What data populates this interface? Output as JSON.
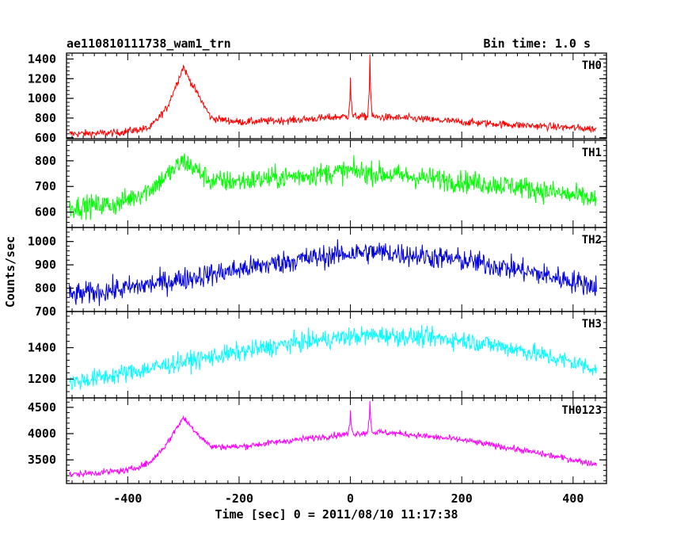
{
  "header": {
    "title": "ae110810111738_wam1_trn",
    "bin_time": "Bin time: 1.0 s"
  },
  "chart_data": {
    "type": "line",
    "xlabel": "Time [sec] 0 = 2011/08/10 11:17:38",
    "ylabel": "Counts/sec",
    "xlim": [
      -510,
      460
    ],
    "x_ticks": [
      -400,
      -200,
      0,
      200,
      400
    ],
    "panels": [
      {
        "label": "TH0",
        "color": "#ff0000",
        "ylim": [
          590,
          1460
        ],
        "y_ticks": [
          600,
          800,
          1000,
          1200,
          1400
        ],
        "profile": {
          "x": [
            -500,
            -420,
            -360,
            -330,
            -310,
            -300,
            -290,
            -270,
            -250,
            -200,
            -100,
            0,
            100,
            200,
            300,
            440
          ],
          "y": [
            640,
            650,
            700,
            900,
            1180,
            1320,
            1200,
            1000,
            800,
            760,
            780,
            820,
            800,
            760,
            730,
            690
          ]
        },
        "noise": 35,
        "spikes": [
          {
            "x": 0,
            "y": 1210
          },
          {
            "x": 35,
            "y": 1460
          }
        ]
      },
      {
        "label": "TH1",
        "color": "#00ff00",
        "ylim": [
          540,
          880
        ],
        "y_ticks": [
          600,
          700,
          800
        ],
        "profile": {
          "x": [
            -500,
            -420,
            -360,
            -320,
            -300,
            -280,
            -250,
            -200,
            -100,
            0,
            100,
            200,
            300,
            440
          ],
          "y": [
            620,
            630,
            690,
            760,
            800,
            770,
            720,
            720,
            740,
            760,
            740,
            720,
            700,
            650
          ]
        },
        "noise": 40,
        "spikes": []
      },
      {
        "label": "TH2",
        "color": "#0000e0",
        "ylim": [
          700,
          1060
        ],
        "y_ticks": [
          700,
          800,
          900,
          1000
        ],
        "profile": {
          "x": [
            -500,
            -400,
            -300,
            -200,
            -100,
            0,
            50,
            100,
            200,
            300,
            440
          ],
          "y": [
            770,
            800,
            840,
            880,
            920,
            950,
            955,
            945,
            920,
            880,
            810
          ]
        },
        "noise": 45,
        "spikes": []
      },
      {
        "label": "TH3",
        "color": "#00ffff",
        "ylim": [
          1080,
          1630
        ],
        "y_ticks": [
          1200,
          1400
        ],
        "profile": {
          "x": [
            -500,
            -400,
            -300,
            -200,
            -100,
            0,
            50,
            100,
            200,
            300,
            440
          ],
          "y": [
            1180,
            1240,
            1310,
            1370,
            1430,
            1470,
            1480,
            1470,
            1450,
            1390,
            1270
          ]
        },
        "noise": 55,
        "spikes": []
      },
      {
        "label": "TH0123",
        "color": "#ff00ff",
        "ylim": [
          3050,
          4680
        ],
        "y_ticks": [
          3500,
          4000,
          4500
        ],
        "profile": {
          "x": [
            -500,
            -400,
            -360,
            -330,
            -310,
            -300,
            -290,
            -270,
            -250,
            -200,
            -100,
            0,
            50,
            100,
            200,
            300,
            440
          ],
          "y": [
            3220,
            3300,
            3450,
            3800,
            4150,
            4300,
            4180,
            3950,
            3750,
            3750,
            3880,
            4000,
            4030,
            3990,
            3880,
            3700,
            3420
          ]
        },
        "noise": 55,
        "spikes": [
          {
            "x": 0,
            "y": 4450
          },
          {
            "x": 35,
            "y": 4670
          }
        ]
      }
    ]
  }
}
